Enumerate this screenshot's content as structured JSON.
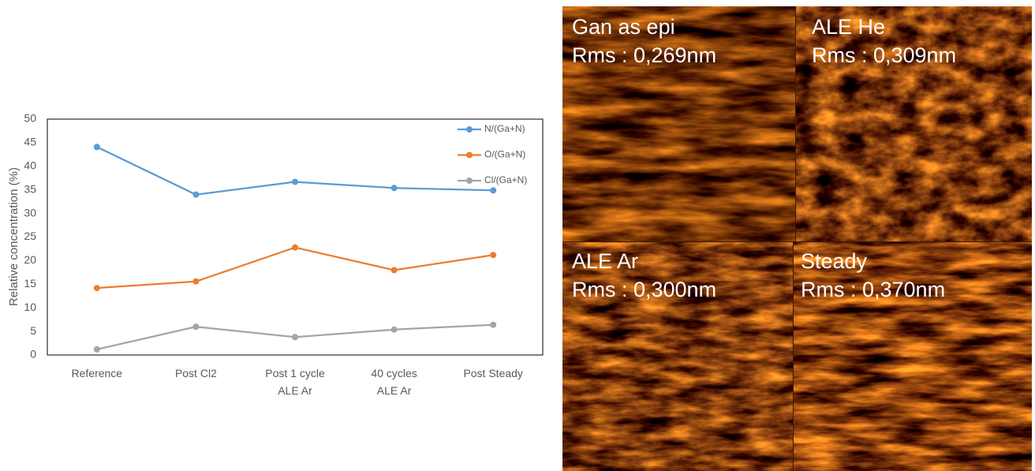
{
  "chart_data": {
    "type": "line",
    "y_label": "Relative concentration (%)",
    "categories": [
      "Reference",
      "Post Cl2",
      "Post 1 cycle\nALE Ar",
      "40 cycles\nALE Ar",
      "Post Steady"
    ],
    "series": [
      {
        "name": "N/(Ga+N)",
        "color": "#5b9bd5",
        "values": [
          44.1,
          34.0,
          36.7,
          35.4,
          34.9
        ]
      },
      {
        "name": "O/(Ga+N)",
        "color": "#ed7d31",
        "values": [
          14.2,
          15.6,
          22.8,
          18.0,
          21.2
        ]
      },
      {
        "name": "Cl/(Ga+N)",
        "color": "#a5a5a5",
        "values": [
          1.2,
          6.0,
          3.8,
          5.4,
          6.4
        ]
      }
    ],
    "ylim": [
      0,
      50
    ],
    "yticks": [
      0,
      5,
      10,
      15,
      20,
      25,
      30,
      35,
      40,
      45,
      50
    ],
    "grid": false,
    "legend": "top-right"
  },
  "images": [
    {
      "title": "Gan as epi",
      "rms": "Rms : 0,269nm"
    },
    {
      "title": "ALE He",
      "rms": "Rms : 0,309nm"
    },
    {
      "title": "ALE Ar",
      "rms": "Rms : 0,300nm"
    },
    {
      "title": "Steady",
      "rms": "Rms : 0,370nm"
    }
  ]
}
